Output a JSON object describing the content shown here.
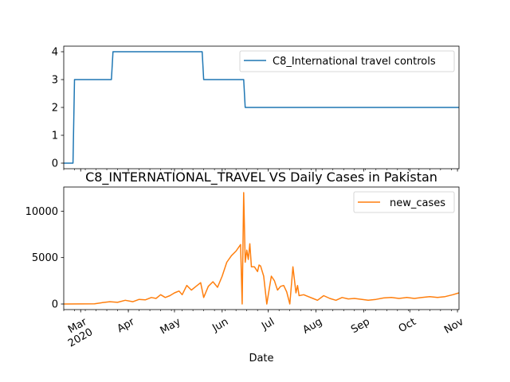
{
  "chart_data": [
    {
      "type": "line",
      "title": "",
      "xlabel": "",
      "ylabel": "",
      "ylim": [
        -0.2,
        4.2
      ],
      "yticks": [
        0,
        1,
        2,
        3,
        4
      ],
      "legend": {
        "placement": "top-right"
      },
      "grid": false,
      "series": [
        {
          "name": "C8_International travel controls",
          "color": "#1f77b4",
          "x": [
            "2020-02-19",
            "2020-02-25",
            "2020-02-26",
            "2020-03-21",
            "2020-03-22",
            "2020-05-19",
            "2020-05-20",
            "2020-06-15",
            "2020-06-16",
            "2020-11-02"
          ],
          "y": [
            0,
            0,
            3,
            3,
            4,
            4,
            3,
            3,
            2,
            2
          ]
        }
      ]
    },
    {
      "type": "line",
      "title": "C8_INTERNATIONAL_TRAVEL VS Daily Cases in Pakistan",
      "xlabel": "Date",
      "ylabel": "",
      "ylim": [
        -600,
        12600
      ],
      "yticks": [
        0,
        5000,
        10000
      ],
      "xlim": [
        "2020-02-19",
        "2020-11-02"
      ],
      "xticks": [
        {
          "date": "2020-03-01",
          "label": "Mar",
          "sublabel": "2020"
        },
        {
          "date": "2020-04-01",
          "label": "Apr"
        },
        {
          "date": "2020-05-01",
          "label": "May"
        },
        {
          "date": "2020-06-01",
          "label": "Jun"
        },
        {
          "date": "2020-07-01",
          "label": "Jul"
        },
        {
          "date": "2020-08-01",
          "label": "Aug"
        },
        {
          "date": "2020-09-01",
          "label": "Sep"
        },
        {
          "date": "2020-10-01",
          "label": "Oct"
        },
        {
          "date": "2020-11-01",
          "label": "Nov"
        }
      ],
      "legend": {
        "placement": "top-right"
      },
      "grid": false,
      "series": [
        {
          "name": "new_cases",
          "color": "#ff7f0e",
          "x": [
            "2020-02-19",
            "2020-03-10",
            "2020-03-15",
            "2020-03-20",
            "2020-03-25",
            "2020-03-30",
            "2020-04-04",
            "2020-04-08",
            "2020-04-12",
            "2020-04-16",
            "2020-04-19",
            "2020-04-22",
            "2020-04-25",
            "2020-04-28",
            "2020-05-01",
            "2020-05-04",
            "2020-05-06",
            "2020-05-09",
            "2020-05-12",
            "2020-05-15",
            "2020-05-18",
            "2020-05-20",
            "2020-05-23",
            "2020-05-26",
            "2020-05-29",
            "2020-06-01",
            "2020-06-04",
            "2020-06-07",
            "2020-06-10",
            "2020-06-13",
            "2020-06-14",
            "2020-06-15",
            "2020-06-16",
            "2020-06-17",
            "2020-06-18",
            "2020-06-19",
            "2020-06-20",
            "2020-06-22",
            "2020-06-24",
            "2020-06-25",
            "2020-06-26",
            "2020-06-28",
            "2020-06-30",
            "2020-07-03",
            "2020-07-05",
            "2020-07-06",
            "2020-07-07",
            "2020-07-09",
            "2020-07-11",
            "2020-07-13",
            "2020-07-15",
            "2020-07-17",
            "2020-07-19",
            "2020-07-20",
            "2020-07-21",
            "2020-07-24",
            "2020-07-27",
            "2020-07-30",
            "2020-08-02",
            "2020-08-06",
            "2020-08-10",
            "2020-08-14",
            "2020-08-18",
            "2020-08-22",
            "2020-08-26",
            "2020-08-31",
            "2020-09-04",
            "2020-09-09",
            "2020-09-14",
            "2020-09-19",
            "2020-09-24",
            "2020-09-29",
            "2020-10-04",
            "2020-10-09",
            "2020-10-14",
            "2020-10-19",
            "2020-10-24",
            "2020-10-29",
            "2020-11-02"
          ],
          "y": [
            0,
            20,
            150,
            250,
            180,
            400,
            250,
            500,
            450,
            700,
            600,
            1000,
            700,
            900,
            1200,
            1400,
            1000,
            2000,
            1500,
            1900,
            2300,
            700,
            1900,
            2400,
            1800,
            3000,
            4500,
            5200,
            5700,
            6400,
            0,
            12000,
            4500,
            5800,
            4800,
            6500,
            4000,
            4000,
            3500,
            4200,
            4100,
            3000,
            0,
            3000,
            2500,
            2000,
            1500,
            1900,
            2000,
            1300,
            0,
            4000,
            1200,
            2000,
            900,
            1000,
            800,
            600,
            400,
            900,
            600,
            400,
            700,
            550,
            600,
            500,
            400,
            500,
            650,
            700,
            600,
            700,
            600,
            700,
            800,
            700,
            800,
            1000,
            1200
          ]
        }
      ]
    }
  ]
}
